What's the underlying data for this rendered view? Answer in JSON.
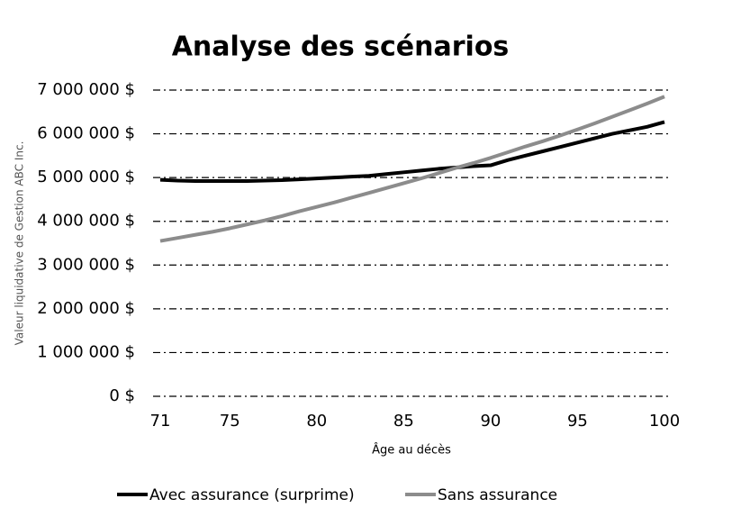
{
  "chart_data": {
    "type": "line",
    "title": "Analyse des scénarios",
    "x_label": "Âge au décès",
    "y_label": "Valeur liquidative de Gestion ABC Inc.",
    "x": [
      71,
      72,
      73,
      74,
      75,
      76,
      77,
      78,
      79,
      80,
      81,
      82,
      83,
      84,
      85,
      86,
      87,
      88,
      89,
      90,
      91,
      92,
      93,
      94,
      95,
      96,
      97,
      98,
      99,
      100
    ],
    "series": [
      {
        "name": "Avec assurance (surprime)",
        "color": "#000000",
        "values": [
          4950000,
          4930000,
          4920000,
          4920000,
          4920000,
          4920000,
          4930000,
          4940000,
          4960000,
          4980000,
          5000000,
          5020000,
          5040000,
          5080000,
          5120000,
          5160000,
          5200000,
          5230000,
          5260000,
          5280000,
          5400000,
          5500000,
          5600000,
          5700000,
          5800000,
          5900000,
          6000000,
          6080000,
          6160000,
          6270000
        ]
      },
      {
        "name": "Sans assurance",
        "color": "#8c8c8c",
        "values": [
          3550000,
          3620000,
          3690000,
          3760000,
          3840000,
          3930000,
          4020000,
          4120000,
          4230000,
          4330000,
          4430000,
          4540000,
          4650000,
          4760000,
          4870000,
          4980000,
          5100000,
          5220000,
          5330000,
          5450000,
          5580000,
          5710000,
          5830000,
          5960000,
          6100000,
          6240000,
          6390000,
          6540000,
          6690000,
          6850000
        ]
      }
    ],
    "xlim": [
      71,
      100
    ],
    "xticks": [
      71,
      75,
      80,
      85,
      90,
      95,
      100
    ],
    "ylim": [
      0,
      7000000
    ],
    "yticks": [
      {
        "value": 0,
        "label": "0 $"
      },
      {
        "value": 1000000,
        "label": "1 000 000 $"
      },
      {
        "value": 2000000,
        "label": "2 000 000 $"
      },
      {
        "value": 3000000,
        "label": "3 000 000 $"
      },
      {
        "value": 4000000,
        "label": "4 000 000 $"
      },
      {
        "value": 5000000,
        "label": "5 000 000 $"
      },
      {
        "value": 6000000,
        "label": "6 000 000 $"
      },
      {
        "value": 7000000,
        "label": "7 000 000 $"
      }
    ],
    "grid": true,
    "legend": "bottom"
  }
}
